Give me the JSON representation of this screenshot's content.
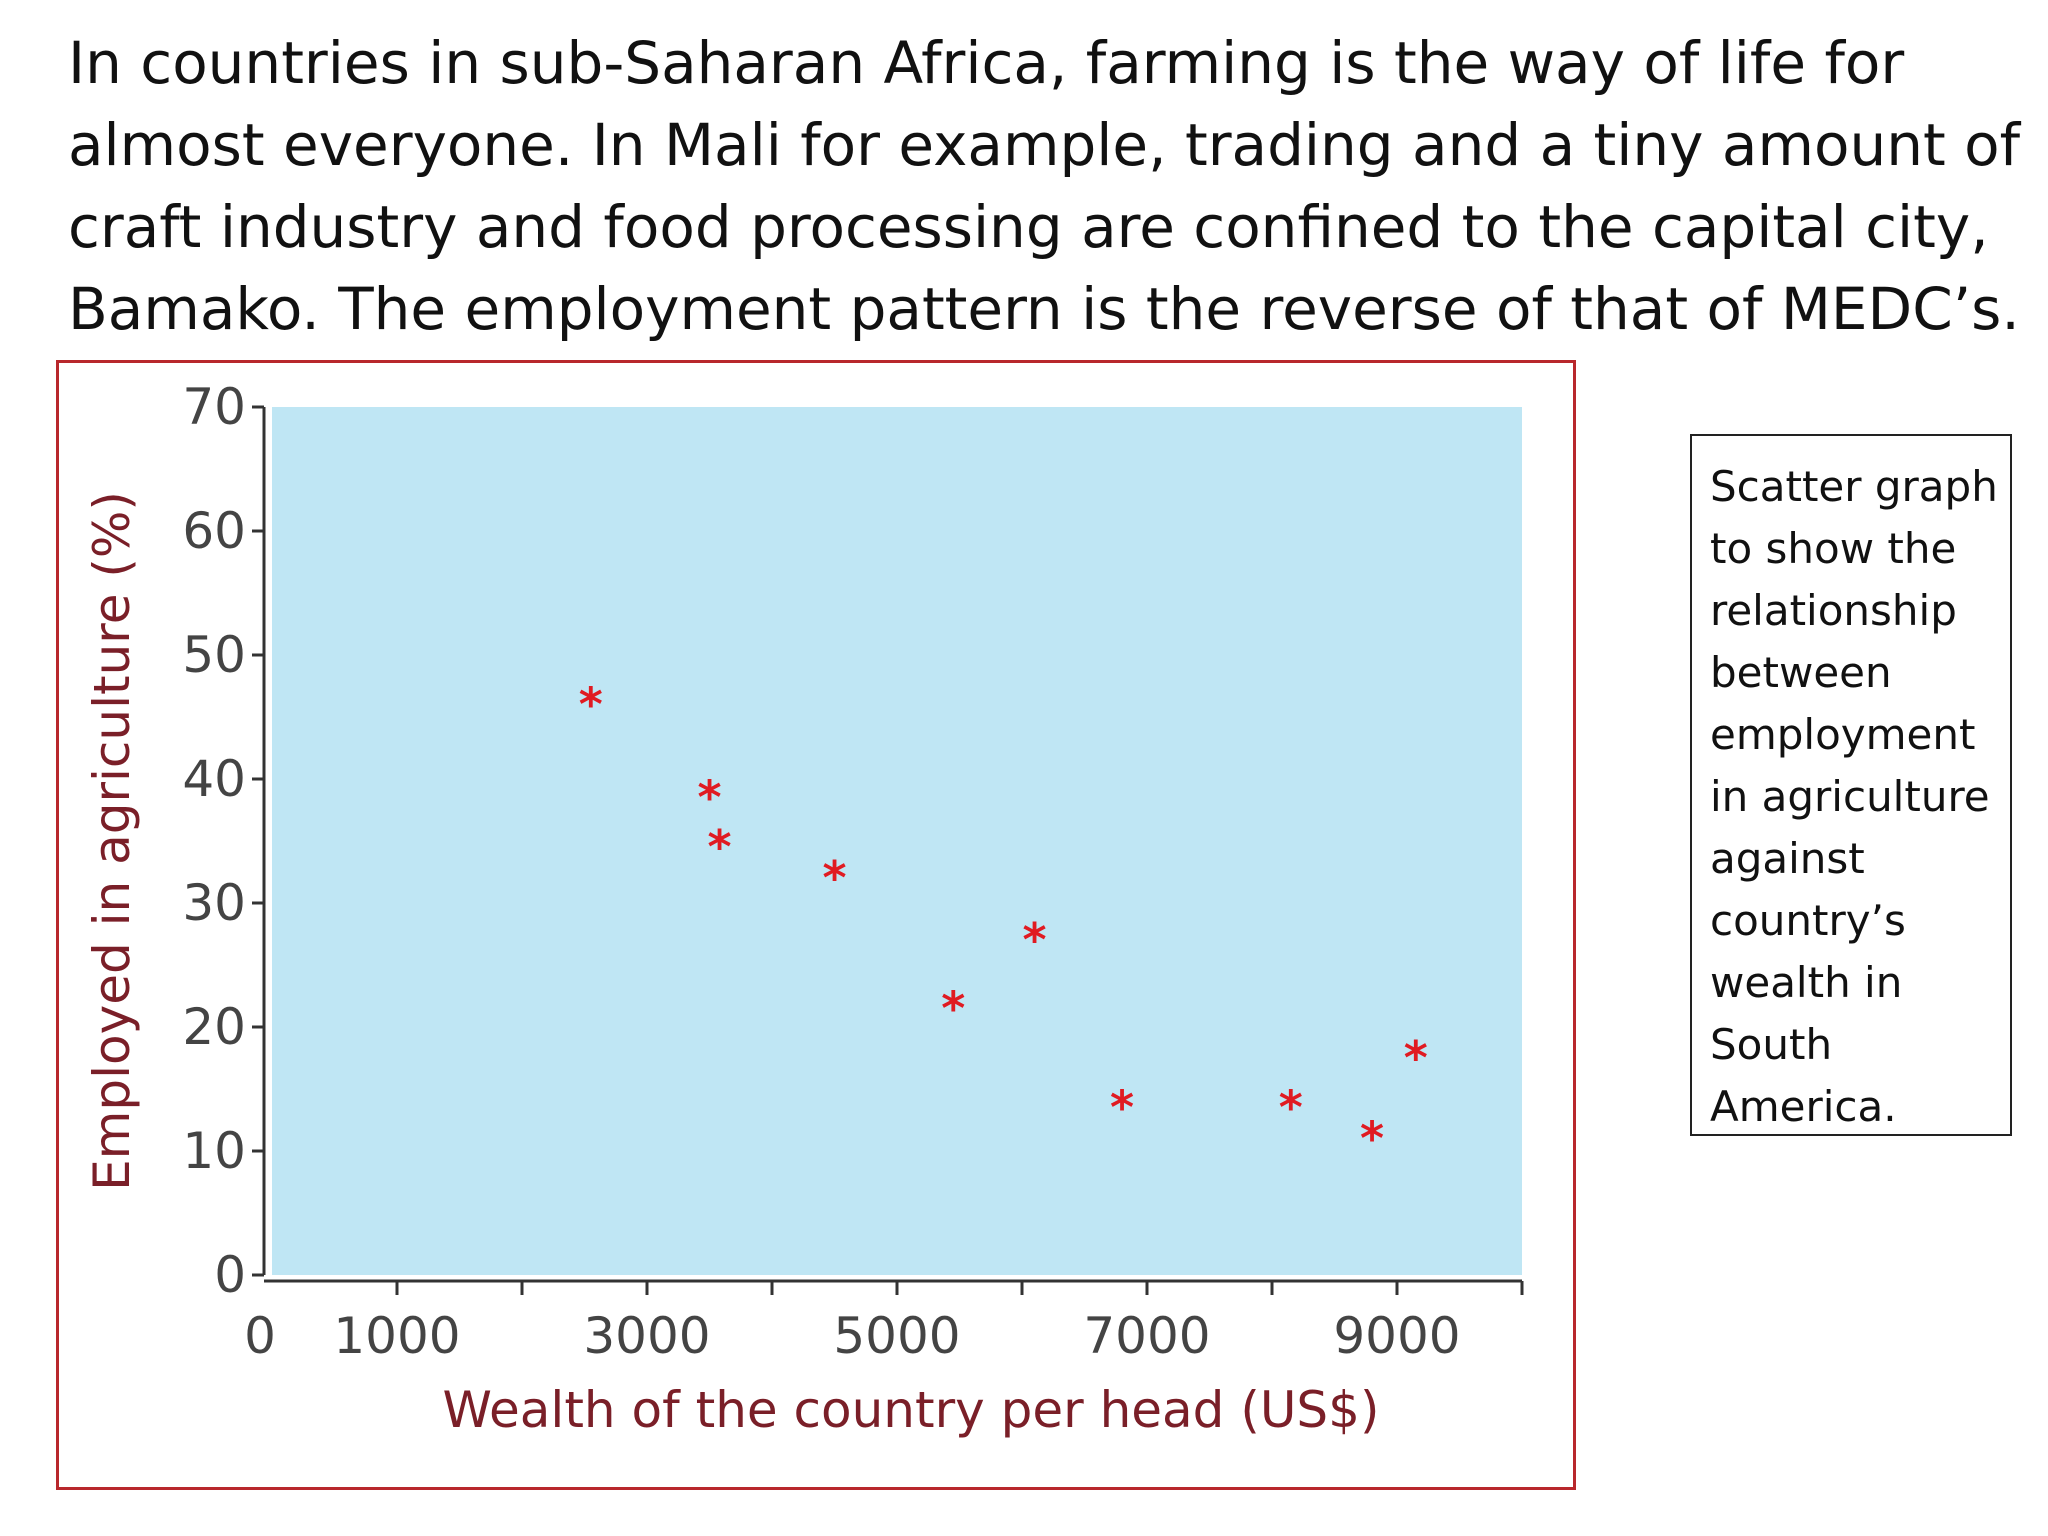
{
  "intro_lines": [
    "In countries in sub-Saharan Africa, farming is the way of life for",
    "almost everyone. In Mali for example, trading and a tiny amount of",
    "craft industry and food processing are confined to the capital city,",
    "Bamako. The employment pattern is the reverse of that of MEDC’s."
  ],
  "caption_lines": [
    "Scatter graph",
    "to show the",
    "relationship",
    "between",
    "employment",
    "in agriculture",
    "against",
    "country’s",
    "wealth in",
    "South",
    "America."
  ],
  "colors": {
    "plot_bg": "#bfe6f4",
    "frame": "#b8282c",
    "marker": "#e01b22",
    "axis_text": "#7a1f28"
  },
  "chart_data": {
    "type": "scatter",
    "title": "",
    "xlabel": "Wealth of the country per head (US$)",
    "ylabel": "Employed in agriculture (%)",
    "xlim": [
      0,
      10000
    ],
    "ylim": [
      0,
      70
    ],
    "xticks": [
      0,
      1000,
      3000,
      5000,
      7000,
      9000
    ],
    "xtick_labels": [
      "0",
      "1000",
      "3000",
      "5000",
      "7000",
      "9000"
    ],
    "xtick_marks": [
      1000,
      2000,
      3000,
      4000,
      5000,
      6000,
      7000,
      8000,
      9000,
      10000
    ],
    "yticks": [
      0,
      10,
      20,
      30,
      40,
      50,
      60,
      70
    ],
    "ytick_labels": [
      "0",
      "10",
      "20",
      "30",
      "40",
      "50",
      "60",
      "70"
    ],
    "marker": "*",
    "points": [
      {
        "x": 2550,
        "y": 46
      },
      {
        "x": 3500,
        "y": 38.5
      },
      {
        "x": 3580,
        "y": 34.5
      },
      {
        "x": 4500,
        "y": 32
      },
      {
        "x": 5450,
        "y": 21.5
      },
      {
        "x": 6100,
        "y": 27
      },
      {
        "x": 6800,
        "y": 13.5
      },
      {
        "x": 8150,
        "y": 13.5
      },
      {
        "x": 8800,
        "y": 11
      },
      {
        "x": 9150,
        "y": 17.5
      }
    ]
  }
}
